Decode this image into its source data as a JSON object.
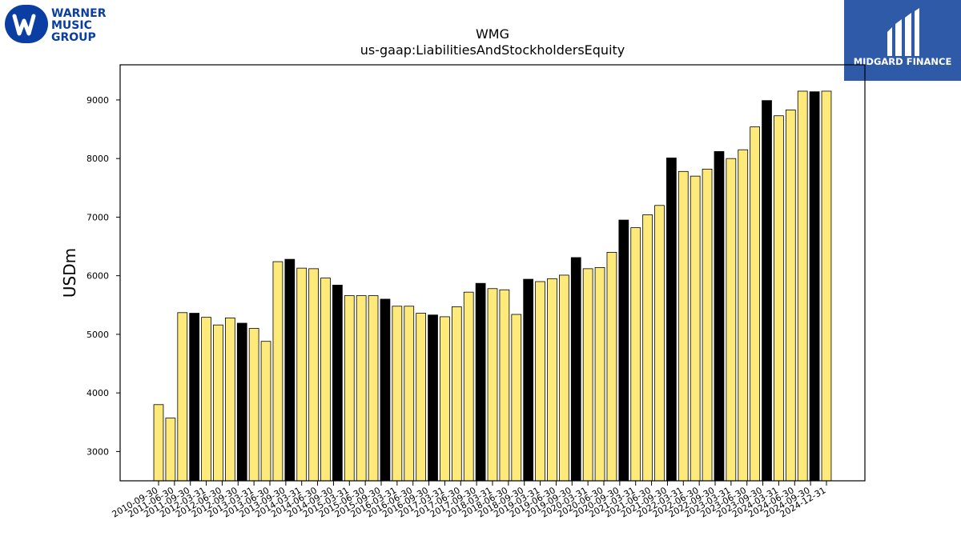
{
  "logos": {
    "left": {
      "lines": [
        "WARNER",
        "MUSIC",
        "GROUP"
      ],
      "color": "#0a3ea3"
    },
    "right": {
      "text": "MIDGARD FINANCE",
      "bg": "#2f5aa8"
    }
  },
  "chart_data": {
    "type": "bar",
    "title": "WMG",
    "subtitle": "us-gaap:LiabilitiesAndStockholdersEquity",
    "ylabel": "USDm",
    "xlabel": "",
    "ylim": [
      2500,
      9600
    ],
    "yticks": [
      3000,
      4000,
      5000,
      6000,
      7000,
      8000,
      9000
    ],
    "grid": false,
    "colors": {
      "quarter": "#fdea7a",
      "fiscal_year_end": "#000000",
      "edge": "#000000"
    },
    "categories": [
      "2010-09-30",
      "2010-12-31",
      "2011-06-30",
      "2011-09-30",
      "2011-12-31",
      "2012-03-31",
      "2012-06-30",
      "2012-09-30",
      "2012-12-31",
      "2013-03-31",
      "2013-06-30",
      "2013-09-30",
      "2013-12-31",
      "2014-03-31",
      "2014-06-30",
      "2014-09-30",
      "2014-12-31",
      "2015-03-31",
      "2015-06-30",
      "2015-09-30",
      "2015-12-31",
      "2016-03-31",
      "2016-06-30",
      "2016-09-30",
      "2016-12-31",
      "2017-03-31",
      "2017-06-30",
      "2017-09-30",
      "2017-12-31",
      "2018-03-31",
      "2018-06-30",
      "2018-09-30",
      "2018-12-31",
      "2019-03-31",
      "2019-06-30",
      "2019-09-30",
      "2019-12-31",
      "2020-03-31",
      "2020-06-30",
      "2020-09-30",
      "2020-12-31",
      "2021-03-31",
      "2021-06-30",
      "2021-09-30",
      "2021-12-31",
      "2022-03-31",
      "2022-06-30",
      "2022-09-30",
      "2022-12-31",
      "2023-03-31",
      "2023-06-30",
      "2023-09-30",
      "2023-12-31",
      "2024-03-31",
      "2024-06-30",
      "2024-09-30",
      "2024-12-31"
    ],
    "xtick_labels": [
      "2010-09-30",
      "2011-06-30",
      "2011-09-30",
      "2012-03-31",
      "2012-06-30",
      "2012-09-30",
      "2013-03-31",
      "2013-06-30",
      "2013-09-30",
      "2014-03-31",
      "2014-06-30",
      "2014-09-30",
      "2015-03-31",
      "2015-06-30",
      "2015-09-30",
      "2016-03-31",
      "2016-06-30",
      "2016-09-30",
      "2017-03-31",
      "2017-06-30",
      "2017-09-30",
      "2018-03-31",
      "2018-06-30",
      "2018-09-30",
      "2019-03-31",
      "2019-06-30",
      "2019-09-30",
      "2020-03-31",
      "2020-06-30",
      "2020-09-30",
      "2021-03-31",
      "2021-06-30",
      "2021-09-30",
      "2022-03-31",
      "2022-06-30",
      "2022-09-30",
      "2023-03-31",
      "2023-06-30",
      "2023-09-30",
      "2024-03-31",
      "2024-06-30",
      "2024-09-30",
      "2024-12-31"
    ],
    "values": [
      3800,
      3570,
      5370,
      5360,
      5290,
      5160,
      5280,
      5190,
      5100,
      4880,
      6240,
      6280,
      6130,
      6120,
      5960,
      5840,
      5660,
      5660,
      5660,
      5600,
      5480,
      5480,
      5360,
      5330,
      5300,
      5470,
      5720,
      5870,
      5780,
      5760,
      5340,
      5940,
      5900,
      5950,
      6010,
      6310,
      6120,
      6140,
      6400,
      6950,
      6820,
      7040,
      7200,
      8010,
      7780,
      7700,
      7820,
      8120,
      8000,
      8150,
      8540,
      8990,
      8730,
      8830,
      9150,
      9140,
      9150
    ],
    "fiscal_year_end": [
      false,
      false,
      false,
      true,
      false,
      false,
      false,
      true,
      false,
      false,
      false,
      true,
      false,
      false,
      false,
      true,
      false,
      false,
      false,
      true,
      false,
      false,
      false,
      true,
      false,
      false,
      false,
      true,
      false,
      false,
      false,
      true,
      false,
      false,
      false,
      true,
      false,
      false,
      false,
      true,
      false,
      false,
      false,
      true,
      false,
      false,
      false,
      true,
      false,
      false,
      false,
      true,
      false,
      false,
      false,
      true,
      false
    ]
  }
}
